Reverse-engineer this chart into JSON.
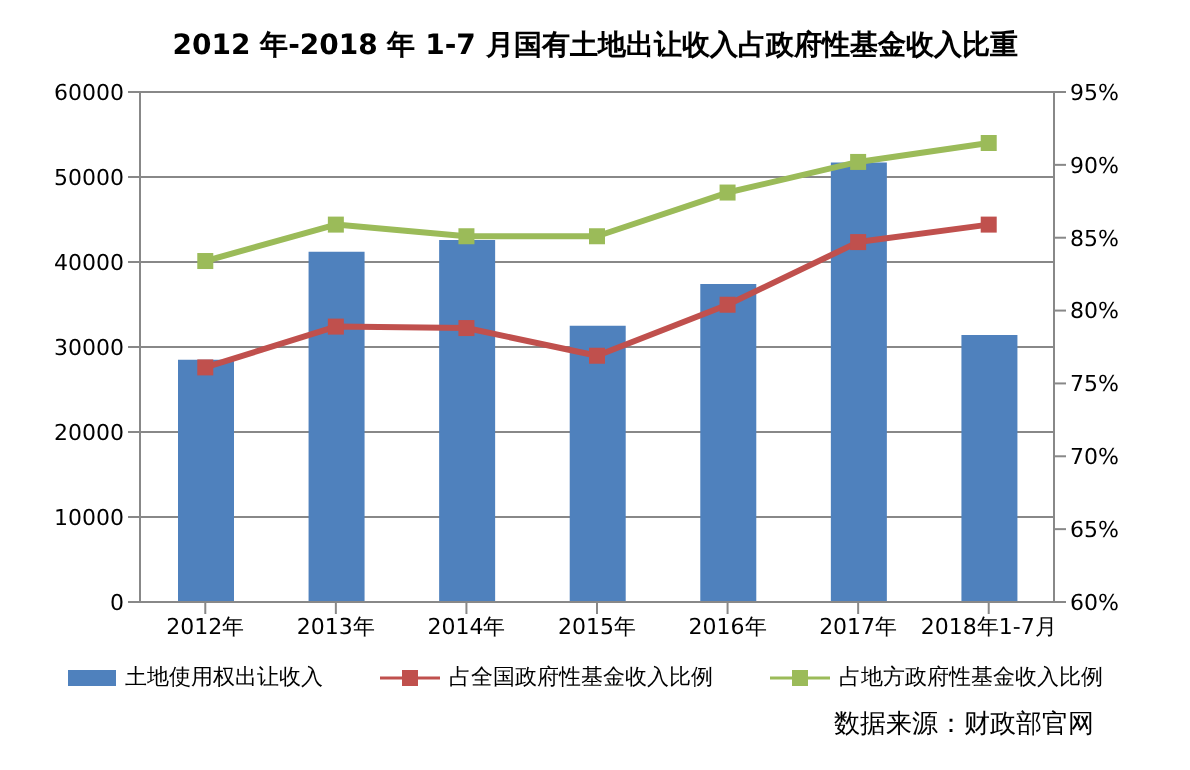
{
  "chart_data": {
    "type": "bar",
    "title": "2012 年-2018 年 1-7 月国有土地出让收入占政府性基金收入比重",
    "categories": [
      "2012年",
      "2013年",
      "2014年",
      "2015年",
      "2016年",
      "2017年",
      "2018年1-7月"
    ],
    "series": [
      {
        "name": "土地使用权出让收入",
        "color": "#4f81bd",
        "values": [
          28500,
          41200,
          42600,
          32500,
          37400,
          51700,
          31400
        ]
      },
      {
        "name": "占全国政府性基金收入比例",
        "type": "line",
        "axis": "y2",
        "color": "#c0504d",
        "values": [
          76.1,
          78.9,
          78.8,
          76.9,
          80.4,
          84.7,
          85.9
        ]
      },
      {
        "name": "占地方政府性基金收入比例",
        "type": "line",
        "axis": "y2",
        "color": "#9bbb59",
        "values": [
          83.4,
          85.9,
          85.1,
          85.1,
          88.1,
          90.2,
          91.5
        ]
      }
    ],
    "ylim": [
      0,
      60000
    ],
    "yticks": [
      0,
      10000,
      20000,
      30000,
      40000,
      50000,
      60000
    ],
    "y2lim": [
      60,
      95
    ],
    "y2ticks": [
      {
        "value": 60,
        "label": "60%"
      },
      {
        "value": 65,
        "label": "65%"
      },
      {
        "value": 70,
        "label": "70%"
      },
      {
        "value": 75,
        "label": "75%"
      },
      {
        "value": 80,
        "label": "80%"
      },
      {
        "value": 85,
        "label": "85%"
      },
      {
        "value": 90,
        "label": "90%"
      },
      {
        "value": 95,
        "label": "95%"
      }
    ],
    "grid": "y",
    "legend": "bottom",
    "marker": "square",
    "line_style": "solid",
    "annotations": [
      "数据来源：财政部官网"
    ]
  }
}
